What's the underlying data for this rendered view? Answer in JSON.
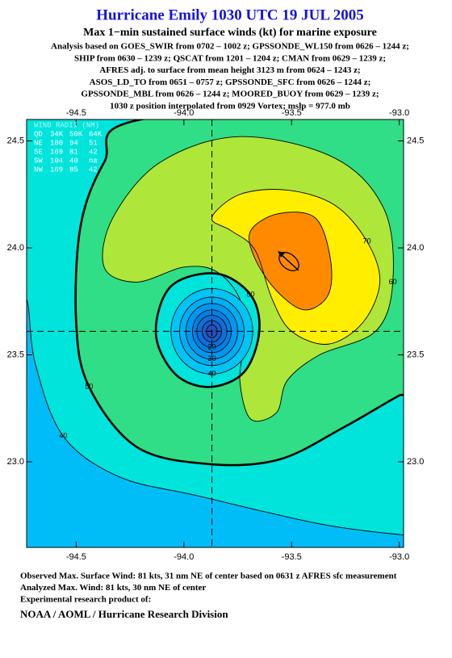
{
  "header": {
    "title": "Hurricane Emily 1030 UTC 19 JUL 2005",
    "subtitle": "Max 1−min sustained surface winds (kt) for marine exposure",
    "lines": [
      "Analysis based on  GOES_SWIR from 0702 – 1002 z;  GPSSONDE_WL150 from 0626 – 1244 z;",
      "SHIP from 0630 – 1239 z;  QSCAT from 1201 – 1204 z;  CMAN from 0629 – 1239 z;",
      "AFRES adj. to surface from mean height 3123 m from 0624 – 1243 z;",
      "ASOS_LD_TO from 0651 – 0757 z;  GPSSONDE_SFC from 0626 – 1244 z;",
      "GPSSONDE_MBL from 0626 – 1244 z;  MOORED_BUOY from 0629 – 1239 z;",
      "1030 z position interpolated from 0929 Vortex; mslp = 977.0 mb"
    ]
  },
  "chart_data": {
    "type": "contour",
    "xlim": [
      -94.73,
      -92.98
    ],
    "ylim": [
      22.6,
      24.6
    ],
    "xticks": [
      -94.5,
      {
        "value": -94,
        "label": "-94.0"
      },
      -93.5,
      {
        "value": -93,
        "label": "-93.0"
      }
    ],
    "yticks": [
      {
        "value": 23,
        "label": "23.0"
      },
      23.5,
      {
        "value": 24,
        "label": "24.0"
      },
      24.5
    ],
    "background_color": "#00e4dc",
    "thick_level": 50,
    "contours": [
      {
        "level": 40,
        "labeled": true,
        "color": "#00bdf8",
        "lon": [
          -94.8,
          -94.73,
          -94.69,
          -94.56,
          -94.3,
          -93.93,
          -93.37,
          -93.0,
          -92.9,
          -92.9,
          -94.8
        ],
        "lat": [
          23.76,
          23.76,
          23.46,
          23.12,
          22.93,
          22.84,
          22.71,
          22.66,
          22.66,
          22.5,
          22.5
        ]
      },
      {
        "level": 50,
        "labeled": true,
        "color": "#2fde86",
        "lon": [
          -94.2,
          -94.37,
          -94.48,
          -94.5,
          -94.44,
          -94.22,
          -93.89,
          -93.56,
          -93.26,
          -93.0,
          -92.9,
          -92.9
        ],
        "lat": [
          24.6,
          24.4,
          24.1,
          23.65,
          23.35,
          23.07,
          22.99,
          23.01,
          23.16,
          23.31,
          23.35,
          24.7
        ]
      },
      {
        "level": 60,
        "labeled": true,
        "color": "#aee63a",
        "lon": [
          -94.37,
          -94.33,
          -94.11,
          -93.74,
          -93.3,
          -93.07,
          -93.03,
          -93.11,
          -93.37,
          -93.52,
          -93.57,
          -93.69,
          -93.74,
          -93.72,
          -93.74,
          -93.85,
          -94.0,
          -94.22
        ],
        "lat": [
          23.91,
          24.14,
          24.4,
          24.52,
          24.42,
          24.18,
          23.84,
          23.61,
          23.5,
          23.38,
          23.23,
          23.2,
          23.38,
          23.57,
          23.76,
          23.89,
          23.91,
          23.84
        ]
      },
      {
        "level": 70,
        "labeled": true,
        "color": "#ffee00",
        "lon": [
          -93.87,
          -93.74,
          -93.52,
          -93.3,
          -93.15,
          -93.09,
          -93.17,
          -93.33,
          -93.5,
          -93.59,
          -93.67,
          -93.78
        ],
        "lat": [
          24.14,
          24.25,
          24.27,
          24.2,
          24.03,
          23.84,
          23.65,
          23.55,
          23.61,
          23.76,
          23.99,
          24.08
        ]
      },
      {
        "level": 80,
        "labeled": false,
        "color": "#ff8a00",
        "lon": [
          -93.69,
          -93.56,
          -93.39,
          -93.32,
          -93.33,
          -93.44,
          -93.57,
          -93.67
        ],
        "lat": [
          24.08,
          24.16,
          24.14,
          23.95,
          23.78,
          23.71,
          23.8,
          23.95
        ]
      },
      {
        "level": 50,
        "labeled": true,
        "color": "#00e4dc",
        "lon": [
          -94.06,
          -93.85,
          -93.69,
          -93.65,
          -93.72,
          -93.88,
          -94.04,
          -94.13
        ],
        "lat": [
          23.82,
          23.88,
          23.78,
          23.61,
          23.42,
          23.35,
          23.41,
          23.6
        ]
      }
    ],
    "rings": [
      {
        "level": 40,
        "labeled": true,
        "color": "#00c4f4",
        "cx": -93.87,
        "cy": 23.61,
        "rx": 0.19,
        "ry": 0.2
      },
      {
        "level": 35,
        "labeled": false,
        "color": "#00aef2",
        "cx": -93.87,
        "cy": 23.61,
        "rx": 0.15,
        "ry": 0.16
      },
      {
        "level": 30,
        "labeled": true,
        "color": "#0098ee",
        "cx": -93.87,
        "cy": 23.61,
        "rx": 0.12,
        "ry": 0.13
      },
      {
        "level": 25,
        "labeled": false,
        "color": "#0082e4",
        "cx": -93.87,
        "cy": 23.61,
        "rx": 0.09,
        "ry": 0.1
      },
      {
        "level": 20,
        "labeled": true,
        "color": "#106ed8",
        "cx": -93.87,
        "cy": 23.61,
        "rx": 0.07,
        "ry": 0.075
      },
      {
        "level": 15,
        "labeled": false,
        "color": "#1e5cc8",
        "cx": -93.87,
        "cy": 23.61,
        "rx": 0.045,
        "ry": 0.05
      },
      {
        "level": 10,
        "labeled": false,
        "color": "#2a4cb8",
        "cx": -93.87,
        "cy": 23.61,
        "rx": 0.025,
        "ry": 0.03
      }
    ],
    "center": {
      "lon": -93.87,
      "lat": 23.61
    }
  },
  "wind_radii": {
    "title": "WIND RADII (NM)",
    "header": [
      "QD",
      "34K",
      "50K",
      "64K"
    ],
    "rows": [
      [
        "NE",
        180,
        94,
        51
      ],
      [
        "SE",
        169,
        81,
        42
      ],
      [
        "SW",
        104,
        40,
        "na"
      ],
      [
        "NW",
        169,
        85,
        42
      ]
    ]
  },
  "footer": {
    "lines": [
      "Observed Max. Surface Wind: 81 kts, 31 nm NE of center based on 0631 z AFRES sfc measurement",
      "Analyzed Max. Wind: 81 kts, 30 nm NE of center",
      "Experimental research product of:"
    ],
    "org": "NOAA / AOML / Hurricane Research Division"
  }
}
